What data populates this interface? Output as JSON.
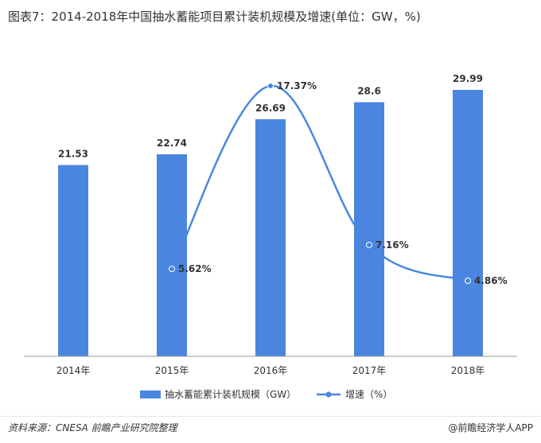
{
  "title": "图表7：2014-2018年中国抽水蓄能项目累计装机规模及增速(单位：GW，%)",
  "source": "资料来源：CNESA 前瞻产业研究院整理",
  "brand": "@前瞻经济学人APP",
  "colors": {
    "bar": "#4A86E0",
    "line": "#4A86E0",
    "axis": "#999999",
    "text": "#333333"
  },
  "chart_data": {
    "type": "bar",
    "categories": [
      "2014年",
      "2015年",
      "2016年",
      "2017年",
      "2018年"
    ],
    "series": [
      {
        "name": "抽水蓄能累计装机规模（GW）",
        "type": "bar",
        "values": [
          21.53,
          22.74,
          26.69,
          28.6,
          29.99
        ],
        "labels": [
          "21.53",
          "22.74",
          "26.69",
          "28.6",
          "29.99"
        ]
      },
      {
        "name": "增速（%）",
        "type": "line",
        "smooth": true,
        "values": [
          null,
          5.62,
          17.37,
          7.16,
          4.86
        ],
        "labels": [
          "",
          "5.62%",
          "17.37%",
          "7.16%",
          "4.86%"
        ]
      }
    ],
    "ylim_bar": [
      0,
      35
    ],
    "ylim_line": [
      0,
      20
    ],
    "grid": false,
    "legend_position": "bottom"
  }
}
